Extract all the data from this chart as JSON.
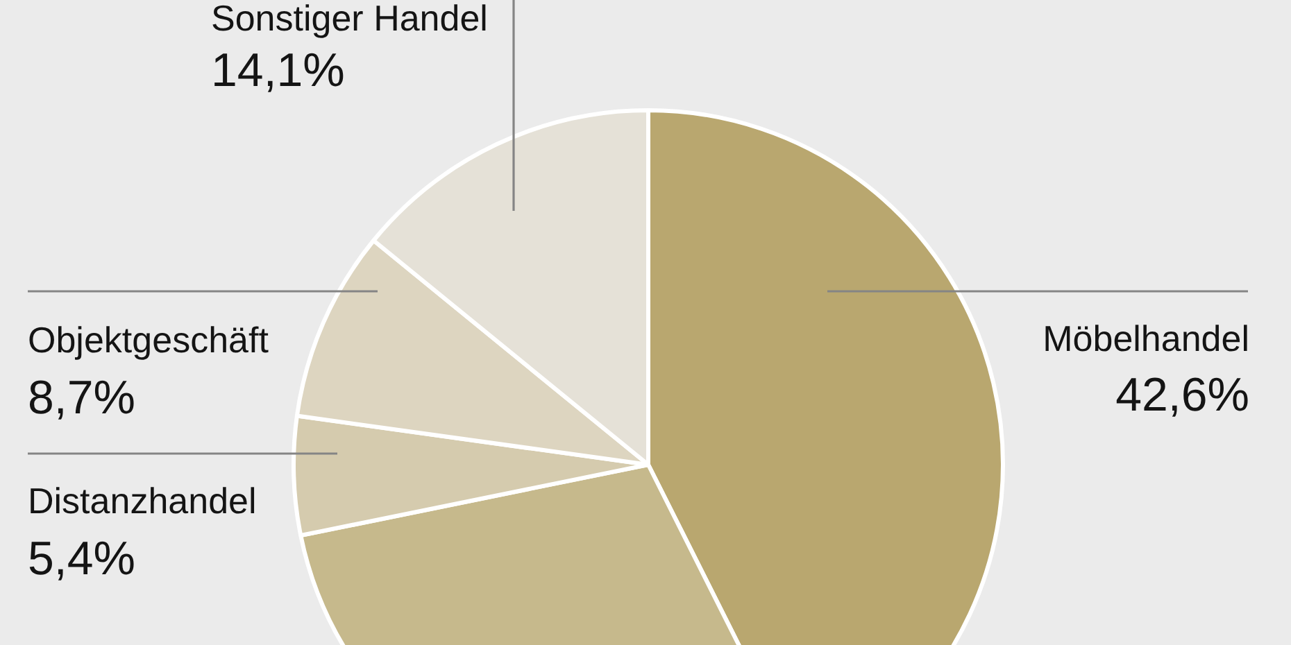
{
  "chart_data": {
    "type": "pie",
    "categories": [
      "Möbelhandel",
      null,
      "Distanzhandel",
      "Objektgeschäft",
      "Sonstiger Handel"
    ],
    "values": [
      42.6,
      29.2,
      5.4,
      8.7,
      14.1
    ],
    "colors": [
      "#b9a76f",
      "#c6b98c",
      "#d5cbae",
      "#ddd5c0",
      "#e5e1d7"
    ],
    "value_labels": [
      "42,6%",
      null,
      "5,4%",
      "8,7%",
      "14,1%"
    ]
  }
}
